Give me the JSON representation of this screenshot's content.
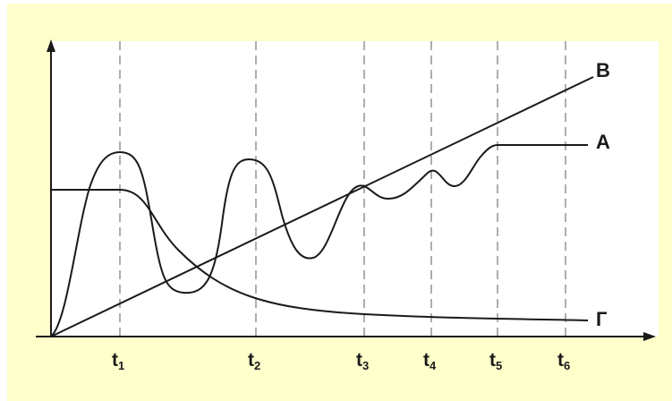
{
  "diagram": {
    "colors": {
      "panel_background": "#FFFFCC",
      "plot_background": "#FFFFFF",
      "ink": "#1a1a1a",
      "guide": "#9a9a9a"
    },
    "ticks": [
      {
        "letter": "t",
        "sub": "1"
      },
      {
        "letter": "t",
        "sub": "2"
      },
      {
        "letter": "t",
        "sub": "3"
      },
      {
        "letter": "t",
        "sub": "4"
      },
      {
        "letter": "t",
        "sub": "5"
      },
      {
        "letter": "t",
        "sub": "6"
      }
    ],
    "curves": {
      "A": "А",
      "B": "В",
      "G": "Г"
    }
  }
}
